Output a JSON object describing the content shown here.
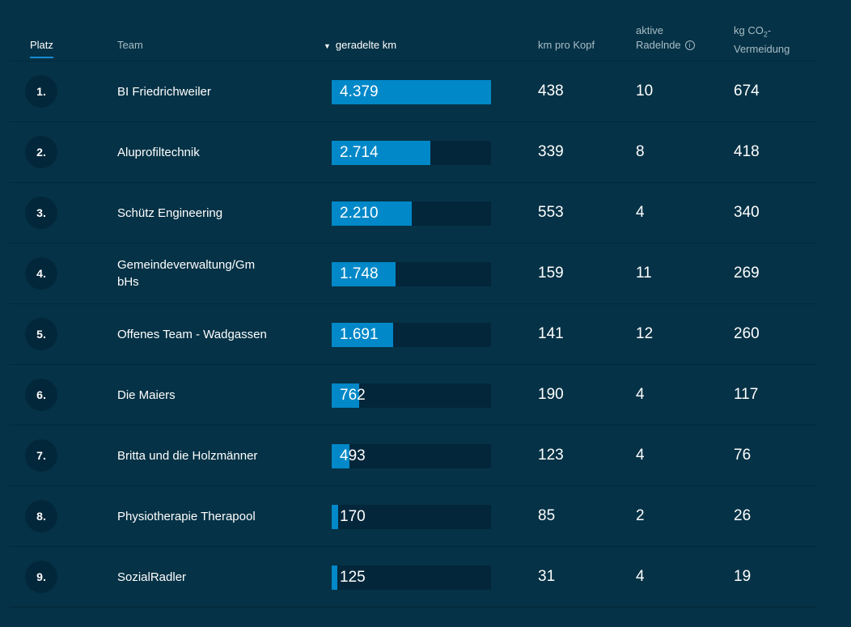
{
  "header": {
    "platz": "Platz",
    "team": "Team",
    "km": "geradelte km",
    "sort_icon": "caret-down-icon",
    "km_pro_kopf": "km pro Kopf",
    "aktive_1": "aktive",
    "aktive_2": "Radelnde",
    "info_icon": "i",
    "co2_1": "kg CO",
    "co2_sub": "2",
    "co2_dash": "-",
    "co2_2": "Vermeidung"
  },
  "max_km": 4379,
  "rows": [
    {
      "rank": "1.",
      "team": "BI Friedrichweiler",
      "km": "4.379",
      "km_value": 4379,
      "km_pro_kopf": "438",
      "aktive": "10",
      "co2": "674"
    },
    {
      "rank": "2.",
      "team": "Aluprofiltechnik",
      "km": "2.714",
      "km_value": 2714,
      "km_pro_kopf": "339",
      "aktive": "8",
      "co2": "418"
    },
    {
      "rank": "3.",
      "team": "Schütz Engineering",
      "km": "2.210",
      "km_value": 2210,
      "km_pro_kopf": "553",
      "aktive": "4",
      "co2": "340"
    },
    {
      "rank": "4.",
      "team": "Gemeindeverwaltung/Gm bHs",
      "km": "1.748",
      "km_value": 1748,
      "km_pro_kopf": "159",
      "aktive": "11",
      "co2": "269"
    },
    {
      "rank": "5.",
      "team": "Offenes Team - Wadgassen",
      "km": "1.691",
      "km_value": 1691,
      "km_pro_kopf": "141",
      "aktive": "12",
      "co2": "260"
    },
    {
      "rank": "6.",
      "team": "Die Maiers",
      "km": "762",
      "km_value": 762,
      "km_pro_kopf": "190",
      "aktive": "4",
      "co2": "117"
    },
    {
      "rank": "7.",
      "team": "Britta und die Holzmänner",
      "km": "493",
      "km_value": 493,
      "km_pro_kopf": "123",
      "aktive": "4",
      "co2": "76"
    },
    {
      "rank": "8.",
      "team": "Physiotherapie Therapool",
      "km": "170",
      "km_value": 170,
      "km_pro_kopf": "85",
      "aktive": "2",
      "co2": "26"
    },
    {
      "rank": "9.",
      "team": "SozialRadler",
      "km": "125",
      "km_value": 125,
      "km_pro_kopf": "31",
      "aktive": "4",
      "co2": "19"
    }
  ]
}
